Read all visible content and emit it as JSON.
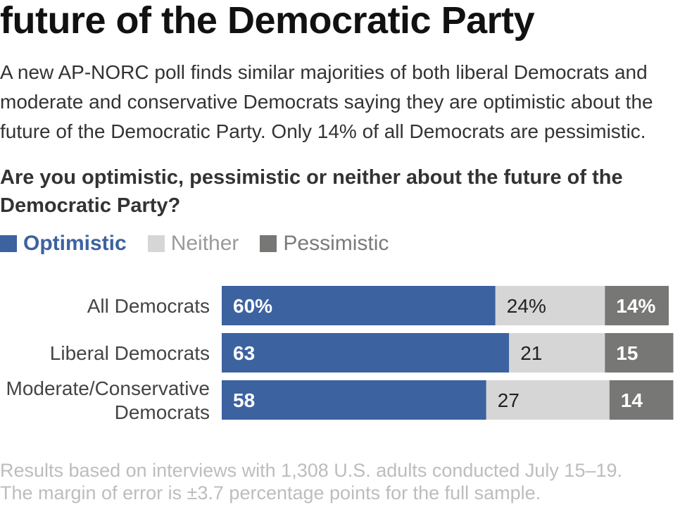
{
  "title": "future of the Democratic Party",
  "subtitle": "A new AP-NORC poll finds similar majorities of both liberal Democrats and moderate and conservative Democrats saying they are optimistic about the future of the Democratic Party. Only 14% of all Democrats are pessimistic.",
  "question": "Are you optimistic, pessimistic or neither about the future of the Democratic Party?",
  "footnote_line1": "Results based on interviews with 1,308 U.S. adults conducted July 15–19.",
  "footnote_line2": "The margin of error is ±3.7 percentage points for the full sample.",
  "legend": [
    {
      "label": "Optimistic",
      "color": "#3c62a0",
      "text_color": "#3c62a0",
      "selected": true
    },
    {
      "label": "Neither",
      "color": "#d6d6d6",
      "text_color": "#9a9a9a",
      "selected": false
    },
    {
      "label": "Pessimistic",
      "color": "#777775",
      "text_color": "#7a7a7a",
      "selected": false
    }
  ],
  "chart_data": {
    "type": "bar",
    "orientation": "horizontal",
    "stacked": true,
    "categories": [
      [
        "All Democrats"
      ],
      [
        "Liberal Democrats"
      ],
      [
        "Moderate/Conservative",
        "Democrats"
      ]
    ],
    "series": [
      {
        "name": "Optimistic",
        "color": "#3c62a0",
        "values": [
          60,
          63,
          58
        ],
        "labels": [
          "60%",
          "63",
          "58"
        ]
      },
      {
        "name": "Neither",
        "color": "#d6d6d6",
        "values": [
          24,
          21,
          27
        ],
        "labels": [
          "24%",
          "21",
          "27"
        ]
      },
      {
        "name": "Pessimistic",
        "color": "#777775",
        "values": [
          14,
          15,
          14
        ],
        "labels": [
          "14%",
          "15",
          "14"
        ]
      }
    ],
    "xlim": [
      0,
      100
    ],
    "grid": false,
    "legend_position": "top-left"
  }
}
